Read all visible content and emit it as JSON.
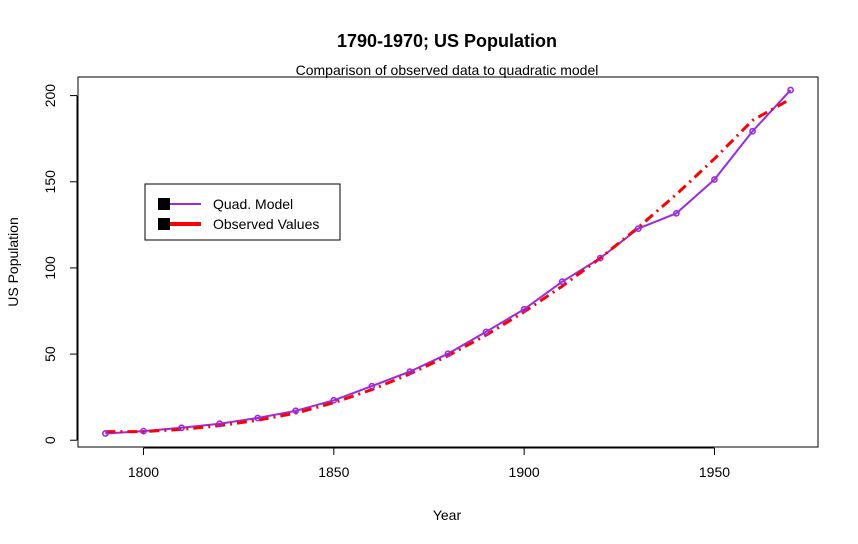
{
  "chart_data": {
    "type": "line",
    "title": "1790-1970; US Population",
    "subtitle": "Comparison of observed data to quadratic model",
    "xlabel": "Year",
    "ylabel": "US Population",
    "xlim": [
      1782.8,
      1977.2
    ],
    "ylim": [
      -3.93,
      210.79
    ],
    "xticks": [
      1800,
      1850,
      1900,
      1950
    ],
    "yticks": [
      0,
      50,
      100,
      150,
      200
    ],
    "grid": false,
    "legend_position": "upper-left",
    "x": [
      1790,
      1800,
      1810,
      1820,
      1830,
      1840,
      1850,
      1860,
      1870,
      1880,
      1890,
      1900,
      1910,
      1920,
      1930,
      1940,
      1950,
      1960,
      1970
    ],
    "series": [
      {
        "name": "Quad. Model",
        "color": "#9a2be2",
        "line_style": "solid",
        "values": [
          3.9,
          5.3,
          7.2,
          9.6,
          12.9,
          17.1,
          23.2,
          31.4,
          39.8,
          50.2,
          62.9,
          76.0,
          92.0,
          105.7,
          122.8,
          131.7,
          151.3,
          179.3,
          203.2
        ]
      },
      {
        "name": "Observed Values",
        "color": "#ff0000",
        "line_style": "dashdot",
        "values": [
          5.0,
          5.0,
          6.3,
          8.5,
          11.6,
          15.7,
          21.8,
          29.4,
          38.5,
          49.0,
          61.0,
          74.5,
          89.4,
          105.7,
          123.5,
          142.7,
          163.4,
          185.6,
          198.0
        ]
      }
    ],
    "point_marker_color": "#9a2be2"
  }
}
